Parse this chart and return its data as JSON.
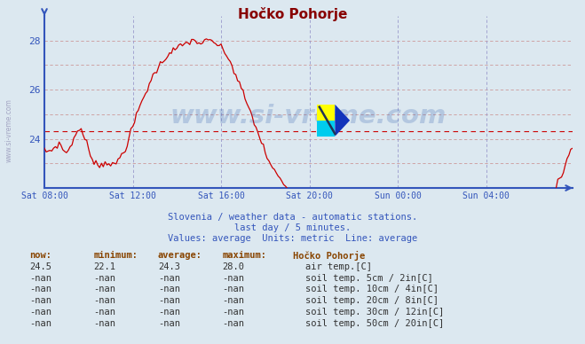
{
  "title": "Hočko Pohorje",
  "bg_color": "#dce8f0",
  "plot_bg_color": "#dce8f0",
  "xlim": [
    0,
    287
  ],
  "ylim": [
    22.0,
    29.0
  ],
  "ytick_positions": [
    24,
    26,
    28
  ],
  "ytick_labels": [
    "24",
    "26",
    "28"
  ],
  "ygrid_positions": [
    22,
    23,
    24,
    25,
    26,
    27,
    28
  ],
  "xtick_positions": [
    0,
    48,
    96,
    144,
    192,
    240
  ],
  "xtick_labels": [
    "Sat 08:00",
    "Sat 12:00",
    "Sat 16:00",
    "Sat 20:00",
    "Sun 00:00",
    "Sun 04:00"
  ],
  "average_value": 24.3,
  "line_color": "#cc0000",
  "axis_color": "#3355bb",
  "grid_color_h": "#cc9999",
  "grid_color_v": "#9999cc",
  "watermark": "www.si-vreme.com",
  "watermark_color": "#2255aa",
  "subtitle1": "Slovenia / weather data - automatic stations.",
  "subtitle2": "last day / 5 minutes.",
  "subtitle3": "Values: average  Units: metric  Line: average",
  "subtitle_color": "#3355bb",
  "legend_title": "Hočko Pohorje",
  "legend_items": [
    {
      "label": "air temp.[C]",
      "color": "#cc0000"
    },
    {
      "label": "soil temp. 5cm / 2in[C]",
      "color": "#ddb0b0"
    },
    {
      "label": "soil temp. 10cm / 4in[C]",
      "color": "#bb8833"
    },
    {
      "label": "soil temp. 20cm / 8in[C]",
      "color": "#aa8800"
    },
    {
      "label": "soil temp. 30cm / 12in[C]",
      "color": "#778844"
    },
    {
      "label": "soil temp. 50cm / 20in[C]",
      "color": "#774400"
    }
  ],
  "table_headers": [
    "now:",
    "minimum:",
    "average:",
    "maximum:"
  ],
  "table_header_color": "#884400",
  "table_data": [
    [
      "24.5",
      "22.1",
      "24.3",
      "28.0"
    ],
    [
      "-nan",
      "-nan",
      "-nan",
      "-nan"
    ],
    [
      "-nan",
      "-nan",
      "-nan",
      "-nan"
    ],
    [
      "-nan",
      "-nan",
      "-nan",
      "-nan"
    ],
    [
      "-nan",
      "-nan",
      "-nan",
      "-nan"
    ],
    [
      "-nan",
      "-nan",
      "-nan",
      "-nan"
    ]
  ],
  "table_data_color": "#333333",
  "side_text": "www.si-vreme.com",
  "side_text_color": "#9999bb"
}
